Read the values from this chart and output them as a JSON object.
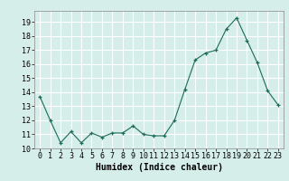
{
  "x": [
    0,
    1,
    2,
    3,
    4,
    5,
    6,
    7,
    8,
    9,
    10,
    11,
    12,
    13,
    14,
    15,
    16,
    17,
    18,
    19,
    20,
    21,
    22,
    23
  ],
  "y": [
    13.7,
    12.0,
    10.4,
    11.2,
    10.4,
    11.1,
    10.8,
    11.1,
    11.1,
    11.6,
    11.0,
    10.9,
    10.9,
    12.0,
    14.2,
    16.3,
    16.8,
    17.0,
    18.5,
    19.3,
    17.7,
    16.1,
    14.1,
    13.1
  ],
  "xlabel": "Humidex (Indice chaleur)",
  "xlim": [
    -0.5,
    23.5
  ],
  "ylim": [
    10,
    19.8
  ],
  "yticks": [
    10,
    11,
    12,
    13,
    14,
    15,
    16,
    17,
    18,
    19
  ],
  "xticks": [
    0,
    1,
    2,
    3,
    4,
    5,
    6,
    7,
    8,
    9,
    10,
    11,
    12,
    13,
    14,
    15,
    16,
    17,
    18,
    19,
    20,
    21,
    22,
    23
  ],
  "line_color": "#1a6b5a",
  "marker": "+",
  "bg_color": "#d6eeea",
  "grid_color": "#ffffff",
  "tick_fontsize": 6,
  "label_fontsize": 7
}
